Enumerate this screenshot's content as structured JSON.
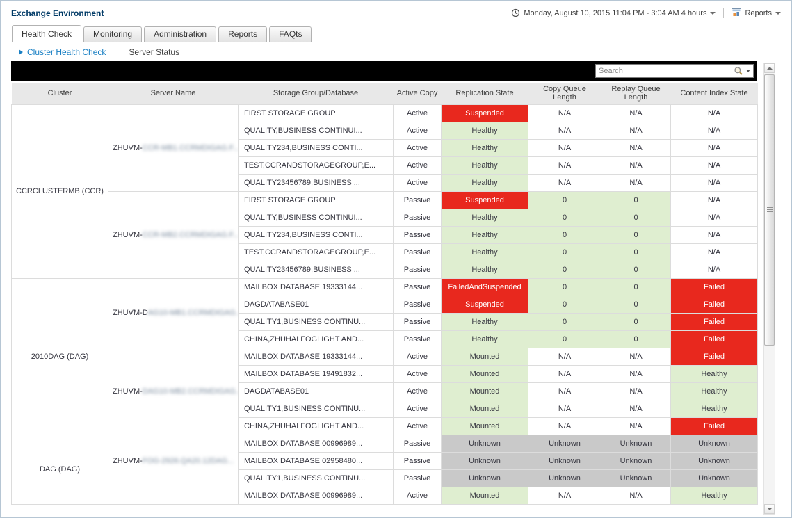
{
  "header": {
    "title": "Exchange Environment",
    "time_range": "Monday, August 10, 2015 11:04 PM - 3:04 AM 4 hours",
    "reports_label": "Reports"
  },
  "tabs": [
    {
      "label": "Health Check",
      "active": true
    },
    {
      "label": "Monitoring",
      "active": false
    },
    {
      "label": "Administration",
      "active": false
    },
    {
      "label": "Reports",
      "active": false
    },
    {
      "label": "FAQts",
      "active": false
    }
  ],
  "breadcrumb": {
    "primary": "Cluster Health Check",
    "secondary": "Server Status"
  },
  "toolbar": {
    "search_placeholder": "Search"
  },
  "colors": {
    "status_red": "#e8281e",
    "status_green": "#dfeed0",
    "status_gray": "#c9c9c9",
    "link_blue": "#1a80c4",
    "title_navy": "#003a66"
  },
  "table": {
    "columns": [
      "Cluster",
      "Server Name",
      "Storage Group/Database",
      "Active Copy",
      "Replication State",
      "Copy Queue Length",
      "Replay Queue Length",
      "Content Index State"
    ],
    "clusters": [
      {
        "name": "CCRCLUSTERMB (CCR)",
        "servers": [
          {
            "prefix": "ZHUVM-",
            "blurred": "CCR-MB1.CCRMDIGAG.F...",
            "rows": [
              {
                "storage": "FIRST STORAGE GROUP",
                "copy": "Active",
                "repl": [
                  "Suspended",
                  "red"
                ],
                "cq": [
                  "N/A",
                  "plain"
                ],
                "rq": [
                  "N/A",
                  "plain"
                ],
                "ci": [
                  "N/A",
                  "plain"
                ]
              },
              {
                "storage": "QUALITY,BUSINESS CONTINUI...",
                "copy": "Active",
                "repl": [
                  "Healthy",
                  "green"
                ],
                "cq": [
                  "N/A",
                  "plain"
                ],
                "rq": [
                  "N/A",
                  "plain"
                ],
                "ci": [
                  "N/A",
                  "plain"
                ]
              },
              {
                "storage": "QUALITY234,BUSINESS CONTI...",
                "copy": "Active",
                "repl": [
                  "Healthy",
                  "green"
                ],
                "cq": [
                  "N/A",
                  "plain"
                ],
                "rq": [
                  "N/A",
                  "plain"
                ],
                "ci": [
                  "N/A",
                  "plain"
                ]
              },
              {
                "storage": "TEST,CCRANDSTORAGEGROUP,E...",
                "copy": "Active",
                "repl": [
                  "Healthy",
                  "green"
                ],
                "cq": [
                  "N/A",
                  "plain"
                ],
                "rq": [
                  "N/A",
                  "plain"
                ],
                "ci": [
                  "N/A",
                  "plain"
                ]
              },
              {
                "storage": "QUALITY23456789,BUSINESS ...",
                "copy": "Active",
                "repl": [
                  "Healthy",
                  "green"
                ],
                "cq": [
                  "N/A",
                  "plain"
                ],
                "rq": [
                  "N/A",
                  "plain"
                ],
                "ci": [
                  "N/A",
                  "plain"
                ]
              }
            ]
          },
          {
            "prefix": "ZHUVM-",
            "blurred": "CCR-MB2.CCRMDIGAG.F...",
            "rows": [
              {
                "storage": "FIRST STORAGE GROUP",
                "copy": "Passive",
                "repl": [
                  "Suspended",
                  "red"
                ],
                "cq": [
                  "0",
                  "green"
                ],
                "rq": [
                  "0",
                  "green"
                ],
                "ci": [
                  "N/A",
                  "plain"
                ]
              },
              {
                "storage": "QUALITY,BUSINESS CONTINUI...",
                "copy": "Passive",
                "repl": [
                  "Healthy",
                  "green"
                ],
                "cq": [
                  "0",
                  "green"
                ],
                "rq": [
                  "0",
                  "green"
                ],
                "ci": [
                  "N/A",
                  "plain"
                ]
              },
              {
                "storage": "QUALITY234,BUSINESS CONTI...",
                "copy": "Passive",
                "repl": [
                  "Healthy",
                  "green"
                ],
                "cq": [
                  "0",
                  "green"
                ],
                "rq": [
                  "0",
                  "green"
                ],
                "ci": [
                  "N/A",
                  "plain"
                ]
              },
              {
                "storage": "TEST,CCRANDSTORAGEGROUP,E...",
                "copy": "Passive",
                "repl": [
                  "Healthy",
                  "green"
                ],
                "cq": [
                  "0",
                  "green"
                ],
                "rq": [
                  "0",
                  "green"
                ],
                "ci": [
                  "N/A",
                  "plain"
                ]
              },
              {
                "storage": "QUALITY23456789,BUSINESS ...",
                "copy": "Passive",
                "repl": [
                  "Healthy",
                  "green"
                ],
                "cq": [
                  "0",
                  "green"
                ],
                "rq": [
                  "0",
                  "green"
                ],
                "ci": [
                  "N/A",
                  "plain"
                ]
              }
            ]
          }
        ]
      },
      {
        "name": "2010DAG (DAG)",
        "servers": [
          {
            "prefix": "ZHUVM-D",
            "blurred": "AG10-MB1.CCRMDIGAG...",
            "rows": [
              {
                "storage": "MAILBOX DATABASE 19333144...",
                "copy": "Passive",
                "repl": [
                  "FailedAndSuspended",
                  "red"
                ],
                "cq": [
                  "0",
                  "green"
                ],
                "rq": [
                  "0",
                  "green"
                ],
                "ci": [
                  "Failed",
                  "red"
                ]
              },
              {
                "storage": "DAGDATABASE01",
                "copy": "Passive",
                "repl": [
                  "Suspended",
                  "red"
                ],
                "cq": [
                  "0",
                  "green"
                ],
                "rq": [
                  "0",
                  "green"
                ],
                "ci": [
                  "Failed",
                  "red"
                ]
              },
              {
                "storage": "QUALITY1,BUSINESS CONTINU...",
                "copy": "Passive",
                "repl": [
                  "Healthy",
                  "green"
                ],
                "cq": [
                  "0",
                  "green"
                ],
                "rq": [
                  "0",
                  "green"
                ],
                "ci": [
                  "Failed",
                  "red"
                ]
              },
              {
                "storage": "CHINA,ZHUHAI FOGLIGHT AND...",
                "copy": "Passive",
                "repl": [
                  "Healthy",
                  "green"
                ],
                "cq": [
                  "0",
                  "green"
                ],
                "rq": [
                  "0",
                  "green"
                ],
                "ci": [
                  "Failed",
                  "red"
                ]
              }
            ]
          },
          {
            "prefix": "ZHUVM-",
            "blurred": "DAG10-MB2.CCRMDIGAG...",
            "rows": [
              {
                "storage": "MAILBOX DATABASE 19333144...",
                "copy": "Active",
                "repl": [
                  "Mounted",
                  "green"
                ],
                "cq": [
                  "N/A",
                  "plain"
                ],
                "rq": [
                  "N/A",
                  "plain"
                ],
                "ci": [
                  "Failed",
                  "red"
                ]
              },
              {
                "storage": "MAILBOX DATABASE 19491832...",
                "copy": "Active",
                "repl": [
                  "Mounted",
                  "green"
                ],
                "cq": [
                  "N/A",
                  "plain"
                ],
                "rq": [
                  "N/A",
                  "plain"
                ],
                "ci": [
                  "Healthy",
                  "green"
                ]
              },
              {
                "storage": "DAGDATABASE01",
                "copy": "Active",
                "repl": [
                  "Mounted",
                  "green"
                ],
                "cq": [
                  "N/A",
                  "plain"
                ],
                "rq": [
                  "N/A",
                  "plain"
                ],
                "ci": [
                  "Healthy",
                  "green"
                ]
              },
              {
                "storage": "QUALITY1,BUSINESS CONTINU...",
                "copy": "Active",
                "repl": [
                  "Mounted",
                  "green"
                ],
                "cq": [
                  "N/A",
                  "plain"
                ],
                "rq": [
                  "N/A",
                  "plain"
                ],
                "ci": [
                  "Healthy",
                  "green"
                ]
              },
              {
                "storage": "CHINA,ZHUHAI FOGLIGHT AND...",
                "copy": "Active",
                "repl": [
                  "Mounted",
                  "green"
                ],
                "cq": [
                  "N/A",
                  "plain"
                ],
                "rq": [
                  "N/A",
                  "plain"
                ],
                "ci": [
                  "Failed",
                  "red"
                ]
              }
            ]
          }
        ]
      },
      {
        "name": "DAG (DAG)",
        "servers": [
          {
            "prefix": "ZHUVM-",
            "blurred": "FOG-2926.QA20.12DAG...",
            "rows": [
              {
                "storage": "MAILBOX DATABASE 00996989...",
                "copy": "Passive",
                "repl": [
                  "Unknown",
                  "gray"
                ],
                "cq": [
                  "Unknown",
                  "gray"
                ],
                "rq": [
                  "Unknown",
                  "gray"
                ],
                "ci": [
                  "Unknown",
                  "gray"
                ]
              },
              {
                "storage": "MAILBOX DATABASE 02958480...",
                "copy": "Passive",
                "repl": [
                  "Unknown",
                  "gray"
                ],
                "cq": [
                  "Unknown",
                  "gray"
                ],
                "rq": [
                  "Unknown",
                  "gray"
                ],
                "ci": [
                  "Unknown",
                  "gray"
                ]
              },
              {
                "storage": "QUALITY1,BUSINESS CONTINU...",
                "copy": "Passive",
                "repl": [
                  "Unknown",
                  "gray"
                ],
                "cq": [
                  "Unknown",
                  "gray"
                ],
                "rq": [
                  "Unknown",
                  "gray"
                ],
                "ci": [
                  "Unknown",
                  "gray"
                ]
              }
            ]
          },
          {
            "prefix": "",
            "blurred": "",
            "rows": [
              {
                "storage": "MAILBOX DATABASE 00996989...",
                "copy": "Active",
                "repl": [
                  "Mounted",
                  "green"
                ],
                "cq": [
                  "N/A",
                  "plain"
                ],
                "rq": [
                  "N/A",
                  "plain"
                ],
                "ci": [
                  "Healthy",
                  "green"
                ]
              }
            ]
          }
        ]
      }
    ]
  }
}
